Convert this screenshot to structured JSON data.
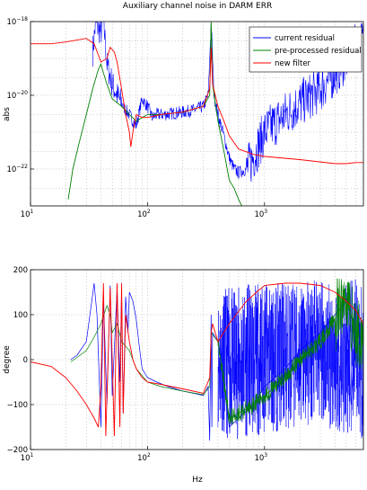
{
  "chart_data": [
    {
      "type": "line",
      "title": "Auxiliary channel noise in DARM ERR",
      "ylabel": "abs",
      "xlabel": "",
      "x_scale": "log",
      "y_scale": "log",
      "xlim": [
        10,
        7000
      ],
      "ylim": [
        1e-23,
        1e-18
      ],
      "x_ticks": [
        {
          "value": 10,
          "base": "10",
          "exp": "1"
        },
        {
          "value": 100,
          "base": "10",
          "exp": "2"
        },
        {
          "value": 1000,
          "base": "10",
          "exp": "3"
        }
      ],
      "y_ticks": [
        {
          "value": 1e-18,
          "base": "10",
          "exp": "−18"
        },
        {
          "value": 1e-20,
          "base": "10",
          "exp": "−20"
        },
        {
          "value": 1e-22,
          "base": "10",
          "exp": "−22"
        }
      ],
      "grid": true,
      "legend": "top-right",
      "series": [
        {
          "name": "current residual",
          "color": "#0000ff",
          "noisy": true,
          "points": [
            [
              34,
              1.5e-19
            ],
            [
              36,
              9e-19
            ],
            [
              40,
              5e-19
            ],
            [
              42,
              1.2e-18
            ],
            [
              45,
              7e-20
            ],
            [
              50,
              2e-20
            ],
            [
              55,
              1e-20
            ],
            [
              60,
              6e-21
            ],
            [
              65,
              4e-21
            ],
            [
              70,
              3e-21
            ],
            [
              75,
              2e-21
            ],
            [
              80,
              1.5e-21
            ],
            [
              90,
              8e-21
            ],
            [
              100,
              5e-21
            ],
            [
              110,
              2.5e-21
            ],
            [
              120,
              3e-21
            ],
            [
              140,
              3e-21
            ],
            [
              160,
              3.2e-21
            ],
            [
              200,
              3.5e-21
            ],
            [
              250,
              4e-21
            ],
            [
              300,
              5e-21
            ],
            [
              330,
              1e-20
            ],
            [
              350,
              1e-18
            ],
            [
              370,
              1e-20
            ],
            [
              400,
              3e-21
            ],
            [
              450,
              8e-22
            ],
            [
              500,
              2e-22
            ],
            [
              550,
              1e-22
            ],
            [
              600,
              8e-23
            ],
            [
              700,
              1e-22
            ],
            [
              800,
              2e-22
            ],
            [
              1000,
              1e-21
            ],
            [
              1500,
              3e-21
            ],
            [
              2000,
              6e-21
            ],
            [
              3000,
              1.5e-20
            ],
            [
              4000,
              4e-20
            ],
            [
              5000,
              1e-19
            ],
            [
              6000,
              2e-19
            ],
            [
              7000,
              3e-19
            ]
          ]
        },
        {
          "name": "pre-processed residual",
          "color": "#008000",
          "noisy": false,
          "points": [
            [
              21,
              1.5e-23
            ],
            [
              23,
              1e-22
            ],
            [
              26,
              5e-22
            ],
            [
              30,
              3e-21
            ],
            [
              34,
              1.5e-20
            ],
            [
              38,
              5e-20
            ],
            [
              40,
              7e-20
            ],
            [
              42,
              4e-20
            ],
            [
              45,
              2e-20
            ],
            [
              50,
              8e-21
            ],
            [
              60,
              5e-21
            ],
            [
              70,
              3e-21
            ],
            [
              80,
              2e-21
            ],
            [
              100,
              3e-21
            ],
            [
              130,
              3e-21
            ],
            [
              200,
              3.5e-21
            ],
            [
              300,
              5e-21
            ],
            [
              340,
              1e-20
            ],
            [
              350,
              1e-18
            ],
            [
              360,
              2e-20
            ],
            [
              400,
              2e-21
            ],
            [
              450,
              3e-22
            ],
            [
              500,
              5e-23
            ],
            [
              550,
              3e-23
            ],
            [
              600,
              1.5e-23
            ],
            [
              640,
              1e-23
            ]
          ]
        },
        {
          "name": "new filter",
          "color": "#ff0000",
          "noisy": false,
          "points": [
            [
              10,
              2.5e-19
            ],
            [
              15,
              2.5e-19
            ],
            [
              20,
              2.8e-19
            ],
            [
              30,
              3.5e-19
            ],
            [
              35,
              2.5e-19
            ],
            [
              40,
              8e-20
            ],
            [
              45,
              1e-19
            ],
            [
              48,
              2e-19
            ],
            [
              52,
              1.5e-19
            ],
            [
              55,
              8e-20
            ],
            [
              60,
              1.5e-20
            ],
            [
              65,
              3e-21
            ],
            [
              70,
              1e-21
            ],
            [
              72,
              4e-22
            ],
            [
              75,
              1e-21
            ],
            [
              80,
              3e-21
            ],
            [
              90,
              2.5e-21
            ],
            [
              100,
              2.5e-21
            ],
            [
              130,
              3e-21
            ],
            [
              200,
              3.5e-21
            ],
            [
              300,
              5e-21
            ],
            [
              340,
              1.5e-20
            ],
            [
              350,
              2e-19
            ],
            [
              360,
              2e-20
            ],
            [
              400,
              5e-21
            ],
            [
              450,
              2e-21
            ],
            [
              500,
              8e-22
            ],
            [
              600,
              3.5e-22
            ],
            [
              800,
              2.5e-22
            ],
            [
              1000,
              2.2e-22
            ],
            [
              2000,
              1.8e-22
            ],
            [
              4000,
              1.4e-22
            ],
            [
              5000,
              1.4e-22
            ],
            [
              6000,
              1.5e-22
            ],
            [
              7000,
              1.5e-22
            ]
          ]
        }
      ]
    },
    {
      "type": "line",
      "title": "",
      "ylabel": "degree",
      "xlabel": "Hz",
      "x_scale": "log",
      "y_scale": "linear",
      "xlim": [
        10,
        7000
      ],
      "ylim": [
        -200,
        200
      ],
      "x_ticks": [
        {
          "value": 10,
          "base": "10",
          "exp": "1"
        },
        {
          "value": 100,
          "base": "10",
          "exp": "2"
        },
        {
          "value": 1000,
          "base": "10",
          "exp": "3"
        }
      ],
      "y_ticks": [
        {
          "value": 200,
          "label": "200"
        },
        {
          "value": 100,
          "label": "100"
        },
        {
          "value": 0,
          "label": "0"
        },
        {
          "value": -100,
          "label": "−100"
        },
        {
          "value": -200,
          "label": "−200"
        }
      ],
      "grid": true,
      "legend": "none",
      "series": [
        {
          "name": "current residual",
          "color": "#0000ff",
          "points": [
            [
              22,
              0
            ],
            [
              25,
              10
            ],
            [
              30,
              40
            ],
            [
              33,
              120
            ],
            [
              35,
              170
            ],
            [
              37,
              100
            ],
            [
              40,
              -150
            ],
            [
              42,
              140
            ],
            [
              45,
              -100
            ],
            [
              48,
              165
            ],
            [
              50,
              -80
            ],
            [
              55,
              160
            ],
            [
              58,
              -50
            ],
            [
              60,
              155
            ],
            [
              62,
              -120
            ],
            [
              65,
              140
            ],
            [
              68,
              60
            ],
            [
              70,
              150
            ],
            [
              75,
              130
            ],
            [
              80,
              90
            ],
            [
              85,
              30
            ],
            [
              90,
              -20
            ],
            [
              100,
              -40
            ],
            [
              120,
              -50
            ],
            [
              150,
              -60
            ],
            [
              200,
              -70
            ],
            [
              250,
              -75
            ],
            [
              300,
              -80
            ],
            [
              330,
              -60
            ],
            [
              340,
              -180
            ],
            [
              350,
              100
            ],
            [
              355,
              -150
            ],
            [
              360,
              60
            ],
            [
              400,
              40
            ],
            [
              450,
              -50
            ],
            [
              500,
              -150
            ],
            [
              600,
              -130
            ],
            [
              800,
              -100
            ],
            [
              1000,
              -60
            ],
            [
              1500,
              -20
            ],
            [
              2000,
              20
            ],
            [
              3000,
              60
            ],
            [
              4000,
              100
            ],
            [
              5000,
              130
            ],
            [
              5500,
              -100
            ],
            [
              6000,
              60
            ],
            [
              7000,
              40
            ]
          ],
          "band": [
            [
              400,
              -150,
              150
            ],
            [
              500,
              -180,
              160
            ],
            [
              800,
              -170,
              170
            ],
            [
              1500,
              -160,
              175
            ],
            [
              3000,
              -140,
              180
            ],
            [
              5000,
              -180,
              180
            ],
            [
              7000,
              -180,
              180
            ]
          ]
        },
        {
          "name": "pre-processed residual",
          "color": "#008000",
          "points": [
            [
              22,
              -5
            ],
            [
              25,
              5
            ],
            [
              30,
              20
            ],
            [
              35,
              50
            ],
            [
              40,
              80
            ],
            [
              45,
              120
            ],
            [
              48,
              100
            ],
            [
              50,
              60
            ],
            [
              55,
              80
            ],
            [
              60,
              40
            ],
            [
              70,
              20
            ],
            [
              80,
              -20
            ],
            [
              100,
              -50
            ],
            [
              130,
              -60
            ],
            [
              200,
              -70
            ],
            [
              300,
              -78
            ],
            [
              340,
              -60
            ],
            [
              350,
              60
            ],
            [
              400,
              40
            ],
            [
              500,
              -130
            ],
            [
              700,
              -110
            ],
            [
              1000,
              -80
            ],
            [
              1500,
              -40
            ],
            [
              2000,
              0
            ],
            [
              3000,
              40
            ],
            [
              4000,
              90
            ],
            [
              5000,
              140
            ],
            [
              6000,
              60
            ],
            [
              7000,
              50
            ]
          ]
        },
        {
          "name": "new filter",
          "color": "#ff0000",
          "points": [
            [
              10,
              -5
            ],
            [
              15,
              -15
            ],
            [
              20,
              -40
            ],
            [
              25,
              -70
            ],
            [
              30,
              -100
            ],
            [
              35,
              -130
            ],
            [
              38,
              -150
            ],
            [
              40,
              -60
            ],
            [
              42,
              170
            ],
            [
              44,
              -170
            ],
            [
              48,
              160
            ],
            [
              52,
              -170
            ],
            [
              55,
              170
            ],
            [
              58,
              -150
            ],
            [
              60,
              170
            ],
            [
              62,
              -120
            ],
            [
              65,
              100
            ],
            [
              70,
              40
            ],
            [
              75,
              0
            ],
            [
              80,
              -20
            ],
            [
              90,
              -40
            ],
            [
              100,
              -50
            ],
            [
              130,
              -55
            ],
            [
              200,
              -65
            ],
            [
              300,
              -75
            ],
            [
              340,
              -40
            ],
            [
              350,
              60
            ],
            [
              360,
              80
            ],
            [
              400,
              40
            ],
            [
              500,
              80
            ],
            [
              700,
              130
            ],
            [
              900,
              155
            ],
            [
              1000,
              165
            ],
            [
              1500,
              170
            ],
            [
              2000,
              170
            ],
            [
              3000,
              165
            ],
            [
              4000,
              150
            ],
            [
              5000,
              130
            ],
            [
              6000,
              110
            ],
            [
              7000,
              80
            ]
          ]
        }
      ]
    }
  ]
}
